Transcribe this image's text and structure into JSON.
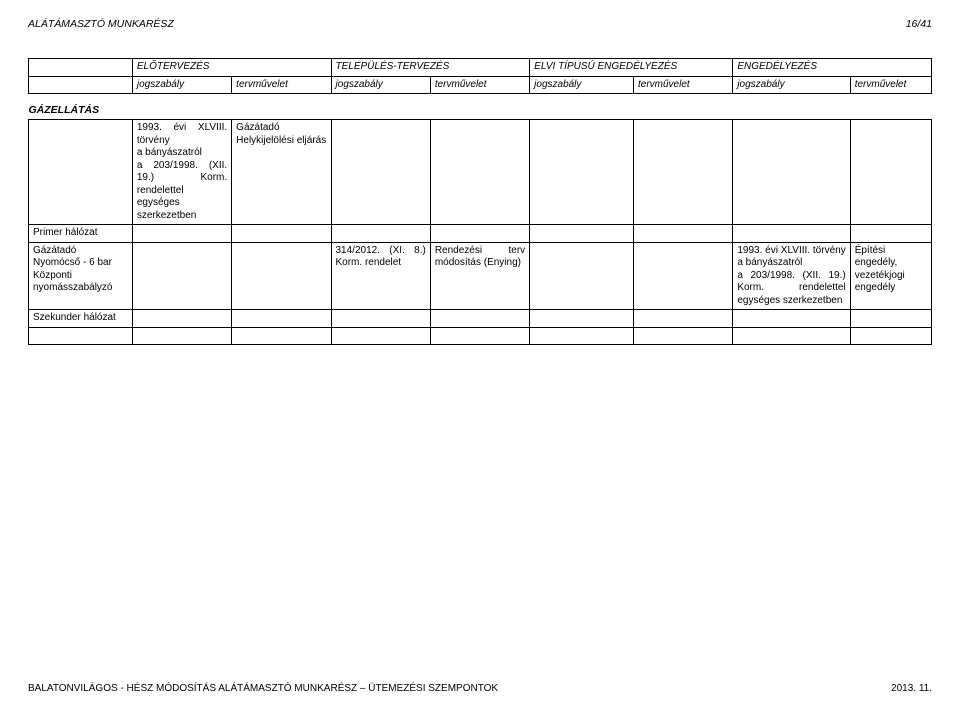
{
  "header": {
    "left": "ALÁTÁMASZTÓ MUNKARÉSZ",
    "right": "16/41"
  },
  "phases": {
    "p1": "ELŐTERVEZÉS",
    "p2": "TELEPÜLÉS-TERVEZÉS",
    "p3": "ELVI TÍPUSÚ ENGEDÉLYEZÉS",
    "p4": "ENGEDÉLYEZÉS"
  },
  "sub": {
    "jog": "jogszabály",
    "terv": "tervművelet"
  },
  "section": "GÁZELLÁTÁS",
  "rows": {
    "r1": {
      "col1": "1993. évi XLVIII. törvény\na bányászatról\na 203/1998. (XII. 19.) Korm. rendelettel egységes szerkezetben",
      "col2": "Gázátadó Helykijelölési eljárás"
    },
    "r2": {
      "label": "Primer hálózat"
    },
    "r3": {
      "label": "Gázátadó\nNyomócső - 6 bar\nKözponti nyomásszabályzó",
      "col3": "314/2012. (XI. 8.) Korm. rendelet",
      "col4": "Rendezési terv módosítás (Enying)",
      "col7": "1993. évi XLVIII. törvény a bányászatról\na 203/1998. (XII. 19.) Korm. rendelettel egységes szerkezetben",
      "col8": "Építési engedély, vezetékjogi engedély"
    },
    "r4": {
      "label": "Szekunder hálózat"
    }
  },
  "footer": {
    "left": "BALATONVILÁGOS - HÉSZ MÓDOSÍTÁS ALÁTÁMASZTÓ MUNKARÉSZ – ÜTEMEZÉSI SZEMPONTOK",
    "right": "2013. 11."
  },
  "colors": {
    "text": "#000000",
    "bg": "#ffffff",
    "border": "#000000"
  },
  "typography": {
    "base_font_family": "Arial",
    "header_fontsize": 10.5,
    "table_fontsize": 10,
    "footer_fontsize": 10
  }
}
